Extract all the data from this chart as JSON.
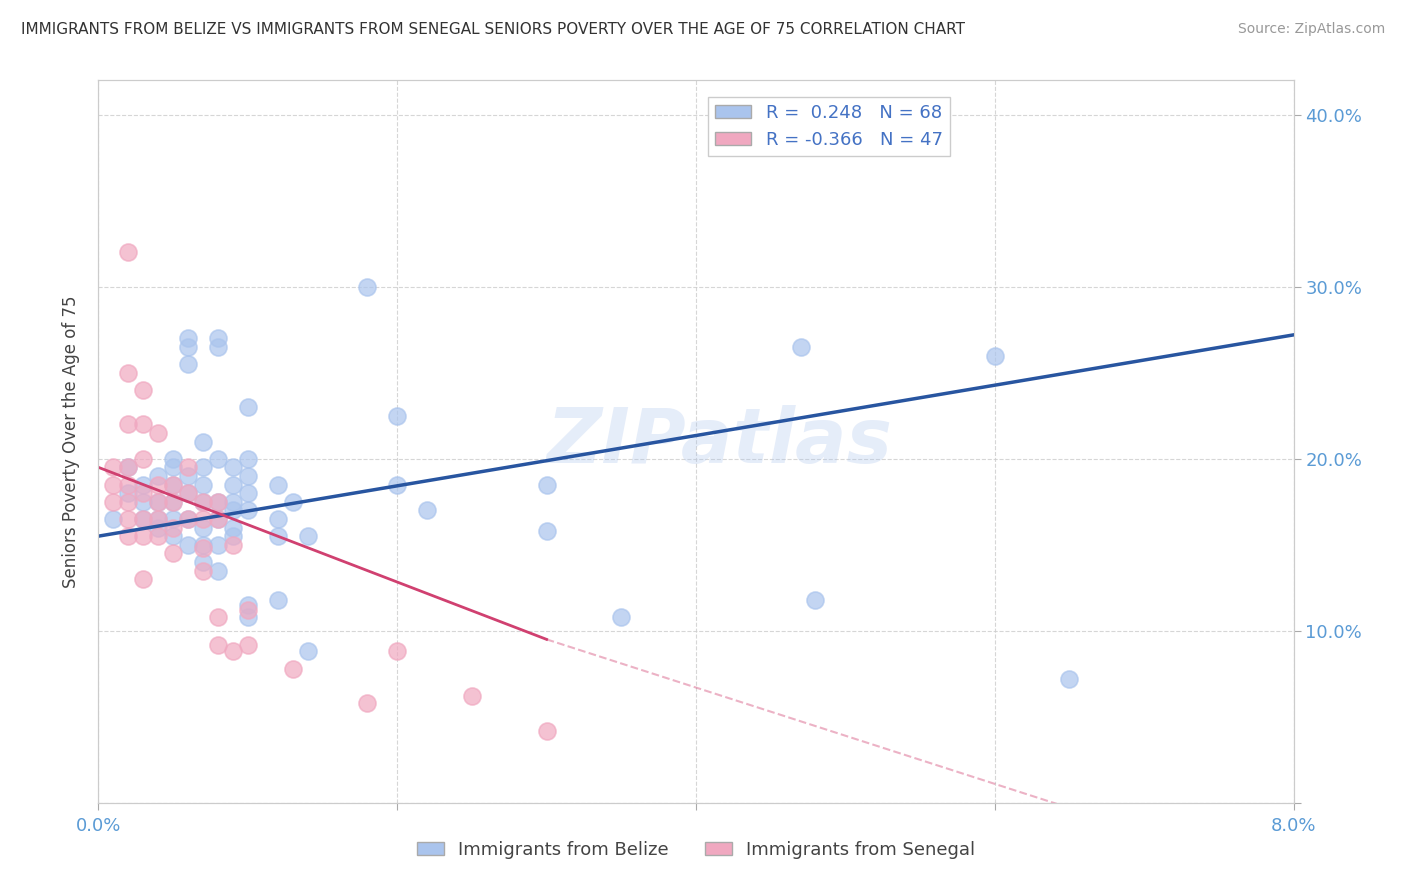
{
  "title": "IMMIGRANTS FROM BELIZE VS IMMIGRANTS FROM SENEGAL SENIORS POVERTY OVER THE AGE OF 75 CORRELATION CHART",
  "source": "Source: ZipAtlas.com",
  "ylabel": "Seniors Poverty Over the Age of 75",
  "xlim": [
    0.0,
    0.08
  ],
  "ylim": [
    0.0,
    0.42
  ],
  "yticks": [
    0.0,
    0.1,
    0.2,
    0.3,
    0.4
  ],
  "xticks": [
    0.0,
    0.02,
    0.04,
    0.06,
    0.08
  ],
  "xtick_labels": [
    "0.0%",
    "",
    "",
    "",
    "8.0%"
  ],
  "ytick_labels_right": [
    "",
    "10.0%",
    "20.0%",
    "30.0%",
    "40.0%"
  ],
  "legend_belize_r": "R =  0.248",
  "legend_belize_n": "N = 68",
  "legend_senegal_r": "R = -0.366",
  "legend_senegal_n": "N = 47",
  "belize_color": "#aac4ed",
  "senegal_color": "#f0a8c0",
  "belize_line_color": "#2855a0",
  "senegal_line_color": "#d04070",
  "watermark": "ZIPatlas",
  "belize_line": [
    0.0,
    0.155,
    0.08,
    0.272
  ],
  "senegal_line_solid": [
    0.0,
    0.195,
    0.03,
    0.095
  ],
  "senegal_line_dashed": [
    0.03,
    0.095,
    0.08,
    -0.045
  ],
  "belize_points": [
    [
      0.001,
      0.165
    ],
    [
      0.002,
      0.195
    ],
    [
      0.002,
      0.18
    ],
    [
      0.003,
      0.185
    ],
    [
      0.003,
      0.175
    ],
    [
      0.003,
      0.165
    ],
    [
      0.004,
      0.19
    ],
    [
      0.004,
      0.175
    ],
    [
      0.004,
      0.165
    ],
    [
      0.004,
      0.16
    ],
    [
      0.005,
      0.2
    ],
    [
      0.005,
      0.195
    ],
    [
      0.005,
      0.185
    ],
    [
      0.005,
      0.175
    ],
    [
      0.005,
      0.165
    ],
    [
      0.005,
      0.155
    ],
    [
      0.006,
      0.27
    ],
    [
      0.006,
      0.265
    ],
    [
      0.006,
      0.255
    ],
    [
      0.006,
      0.19
    ],
    [
      0.006,
      0.18
    ],
    [
      0.006,
      0.165
    ],
    [
      0.006,
      0.15
    ],
    [
      0.007,
      0.21
    ],
    [
      0.007,
      0.195
    ],
    [
      0.007,
      0.185
    ],
    [
      0.007,
      0.175
    ],
    [
      0.007,
      0.16
    ],
    [
      0.007,
      0.15
    ],
    [
      0.007,
      0.14
    ],
    [
      0.008,
      0.27
    ],
    [
      0.008,
      0.265
    ],
    [
      0.008,
      0.2
    ],
    [
      0.008,
      0.175
    ],
    [
      0.008,
      0.165
    ],
    [
      0.008,
      0.15
    ],
    [
      0.008,
      0.135
    ],
    [
      0.009,
      0.195
    ],
    [
      0.009,
      0.185
    ],
    [
      0.009,
      0.175
    ],
    [
      0.009,
      0.17
    ],
    [
      0.009,
      0.16
    ],
    [
      0.009,
      0.155
    ],
    [
      0.01,
      0.23
    ],
    [
      0.01,
      0.2
    ],
    [
      0.01,
      0.19
    ],
    [
      0.01,
      0.18
    ],
    [
      0.01,
      0.17
    ],
    [
      0.01,
      0.115
    ],
    [
      0.01,
      0.108
    ],
    [
      0.012,
      0.185
    ],
    [
      0.012,
      0.165
    ],
    [
      0.012,
      0.155
    ],
    [
      0.012,
      0.118
    ],
    [
      0.013,
      0.175
    ],
    [
      0.014,
      0.155
    ],
    [
      0.014,
      0.088
    ],
    [
      0.018,
      0.3
    ],
    [
      0.02,
      0.225
    ],
    [
      0.02,
      0.185
    ],
    [
      0.022,
      0.17
    ],
    [
      0.03,
      0.185
    ],
    [
      0.03,
      0.158
    ],
    [
      0.035,
      0.108
    ],
    [
      0.047,
      0.265
    ],
    [
      0.048,
      0.118
    ],
    [
      0.06,
      0.26
    ],
    [
      0.065,
      0.072
    ]
  ],
  "senegal_points": [
    [
      0.001,
      0.195
    ],
    [
      0.001,
      0.185
    ],
    [
      0.001,
      0.175
    ],
    [
      0.002,
      0.32
    ],
    [
      0.002,
      0.25
    ],
    [
      0.002,
      0.22
    ],
    [
      0.002,
      0.195
    ],
    [
      0.002,
      0.185
    ],
    [
      0.002,
      0.175
    ],
    [
      0.002,
      0.165
    ],
    [
      0.002,
      0.155
    ],
    [
      0.003,
      0.24
    ],
    [
      0.003,
      0.22
    ],
    [
      0.003,
      0.2
    ],
    [
      0.003,
      0.18
    ],
    [
      0.003,
      0.165
    ],
    [
      0.003,
      0.155
    ],
    [
      0.003,
      0.13
    ],
    [
      0.004,
      0.215
    ],
    [
      0.004,
      0.185
    ],
    [
      0.004,
      0.175
    ],
    [
      0.004,
      0.165
    ],
    [
      0.004,
      0.155
    ],
    [
      0.005,
      0.185
    ],
    [
      0.005,
      0.175
    ],
    [
      0.005,
      0.16
    ],
    [
      0.005,
      0.145
    ],
    [
      0.006,
      0.195
    ],
    [
      0.006,
      0.18
    ],
    [
      0.006,
      0.165
    ],
    [
      0.007,
      0.175
    ],
    [
      0.007,
      0.165
    ],
    [
      0.007,
      0.148
    ],
    [
      0.007,
      0.135
    ],
    [
      0.008,
      0.175
    ],
    [
      0.008,
      0.165
    ],
    [
      0.008,
      0.108
    ],
    [
      0.008,
      0.092
    ],
    [
      0.009,
      0.15
    ],
    [
      0.009,
      0.088
    ],
    [
      0.01,
      0.112
    ],
    [
      0.01,
      0.092
    ],
    [
      0.013,
      0.078
    ],
    [
      0.018,
      0.058
    ],
    [
      0.02,
      0.088
    ],
    [
      0.025,
      0.062
    ],
    [
      0.03,
      0.042
    ]
  ]
}
